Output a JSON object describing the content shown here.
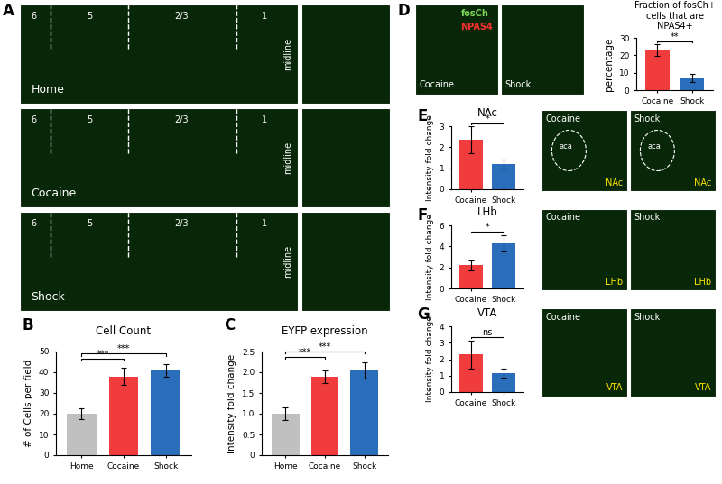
{
  "images": {
    "A": {
      "rows": [
        "Home",
        "Cocaine",
        "Shock"
      ],
      "layers": [
        "6",
        "5",
        "2/3",
        "1"
      ],
      "midline": "midline"
    },
    "D": {
      "conditions": [
        "Cocaine",
        "Shock"
      ],
      "stains": [
        {
          "name": "fosCh",
          "color": "#7cd65a"
        },
        {
          "name": "NPAS4",
          "color": "#ff3030"
        }
      ]
    },
    "E": {
      "conditions": [
        "Cocaine",
        "Shock"
      ],
      "region": "NAc",
      "structure": "aca"
    },
    "F": {
      "conditions": [
        "Cocaine",
        "Shock"
      ],
      "region": "LHb"
    },
    "G": {
      "conditions": [
        "Cocaine",
        "Shock"
      ],
      "region": "VTA"
    }
  },
  "chart_data": [
    {
      "panel": "B",
      "type": "bar",
      "title": "Cell Count",
      "y_label": "# of Cells per field",
      "categories": [
        "Home",
        "Cocaine",
        "Shock"
      ],
      "values": [
        20,
        38,
        41
      ],
      "errors": [
        2.5,
        4,
        3
      ],
      "colors": [
        "#c0c0c0",
        "#f03c3c",
        "#2a6ebb"
      ],
      "ylim": [
        0,
        50
      ],
      "yticks": [
        0,
        10,
        20,
        30,
        40,
        50
      ],
      "annotations": [
        {
          "text": "***",
          "between": [
            "Home",
            "Cocaine"
          ]
        },
        {
          "text": "***",
          "between": [
            "Home",
            "Shock"
          ]
        }
      ]
    },
    {
      "panel": "C",
      "type": "bar",
      "title": "EYFP expression",
      "y_label": "Intensity fold change",
      "categories": [
        "Home",
        "Cocaine",
        "Shock"
      ],
      "values": [
        1.0,
        1.9,
        2.05
      ],
      "errors": [
        0.15,
        0.15,
        0.2
      ],
      "colors": [
        "#c0c0c0",
        "#f03c3c",
        "#2a6ebb"
      ],
      "ylim": [
        0,
        2.5
      ],
      "yticks": [
        0,
        0.5,
        {
          "value": 1,
          "label": "1.0"
        },
        1.5,
        {
          "value": 2,
          "label": "2.0"
        },
        2.5
      ],
      "annotations": [
        {
          "text": "***",
          "between": [
            "Home",
            "Cocaine"
          ]
        },
        {
          "text": "***",
          "between": [
            "Home",
            "Shock"
          ]
        }
      ]
    },
    {
      "panel": "D",
      "type": "bar",
      "title": "Fraction of fosCh+ cells that are NPAS4+",
      "y_label": "percentage",
      "categories": [
        "Cocaine",
        "Shock"
      ],
      "values": [
        23,
        7
      ],
      "errors": [
        3.5,
        2.5
      ],
      "colors": [
        "#f03c3c",
        "#2a6ebb"
      ],
      "ylim": [
        0,
        30
      ],
      "yticks": [
        0,
        10,
        20,
        30
      ],
      "annotations": [
        {
          "text": "**",
          "between": [
            "Cocaine",
            "Shock"
          ]
        }
      ]
    },
    {
      "panel": "E",
      "type": "bar",
      "title": "NAc",
      "y_label": "Intensity fold change",
      "categories": [
        "Cocaine",
        "Shock"
      ],
      "values": [
        2.35,
        1.2
      ],
      "errors": [
        0.65,
        0.2
      ],
      "colors": [
        "#f03c3c",
        "#2a6ebb"
      ],
      "ylim": [
        0,
        3
      ],
      "yticks": [
        0,
        1,
        2,
        3
      ],
      "annotations": [
        {
          "text": "*",
          "between": [
            "Cocaine",
            "Shock"
          ]
        }
      ]
    },
    {
      "panel": "F",
      "type": "bar",
      "title": "LHb",
      "y_label": "Intensity fold change",
      "categories": [
        "Cocaine",
        "Shock"
      ],
      "values": [
        2.2,
        4.3
      ],
      "errors": [
        0.5,
        0.8
      ],
      "colors": [
        "#f03c3c",
        "#2a6ebb"
      ],
      "ylim": [
        0,
        6
      ],
      "yticks": [
        0,
        2,
        4,
        6
      ],
      "annotations": [
        {
          "text": "*",
          "between": [
            "Cocaine",
            "Shock"
          ]
        }
      ]
    },
    {
      "panel": "G",
      "type": "bar",
      "title": "VTA",
      "y_label": "Intensity fold change",
      "categories": [
        "Cocaine",
        "Shock"
      ],
      "values": [
        2.3,
        1.15
      ],
      "errors": [
        0.85,
        0.25
      ],
      "colors": [
        "#f03c3c",
        "#2a6ebb"
      ],
      "ylim": [
        0,
        4
      ],
      "yticks": [
        0,
        1,
        2,
        3,
        4
      ],
      "annotations": [
        {
          "text": "ns",
          "between": [
            "Cocaine",
            "Shock"
          ]
        }
      ]
    }
  ]
}
